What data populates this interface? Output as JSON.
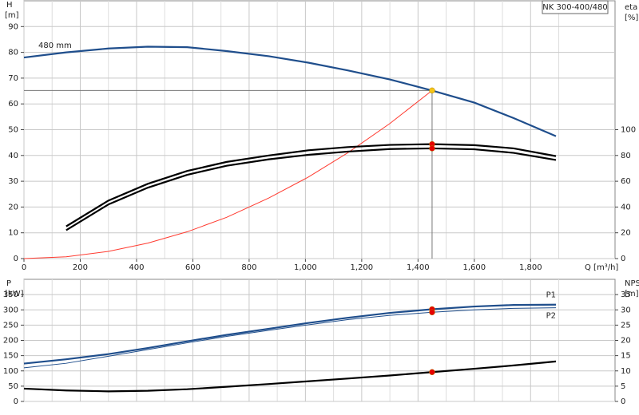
{
  "chart_data": [
    {
      "type": "line",
      "title": "NK 300-400/480",
      "xlabel": "Q [m³/h]",
      "ylabel": "H",
      "ylabel_unit": "[m]",
      "y2label": "eta",
      "y2label_unit": "[%]",
      "xlim": [
        0,
        2100
      ],
      "xticks": [
        0,
        200,
        400,
        600,
        800,
        {
          "value": 1000,
          "label": "1,000"
        },
        {
          "value": 1200,
          "label": "1,200"
        },
        {
          "value": 1400,
          "label": "1,400"
        },
        {
          "value": 1600,
          "label": "1,600"
        },
        {
          "value": 1800,
          "label": "1,800"
        }
      ],
      "ylim": [
        0,
        100
      ],
      "yticks": [
        0,
        10,
        20,
        30,
        40,
        50,
        60,
        70,
        80,
        90
      ],
      "y2lim": [
        0,
        200
      ],
      "y2ticks": [
        0,
        20,
        40,
        60,
        80,
        100
      ],
      "grid": true,
      "series": [
        {
          "name": "480 mm",
          "color": "#1f4e8c",
          "x": [
            0,
            150,
            300,
            440,
            580,
            720,
            870,
            1010,
            1150,
            1300,
            1450,
            1600,
            1740,
            1890
          ],
          "values": [
            78,
            80,
            81.5,
            82.2,
            82,
            80.5,
            78.5,
            76,
            73,
            69.5,
            65.2,
            60.5,
            54.5,
            47.5
          ]
        },
        {
          "color": "#ff3b30",
          "x": [
            0,
            150,
            300,
            440,
            580,
            720,
            870,
            1010,
            1150,
            1300,
            1450
          ],
          "values": [
            0,
            0.7,
            2.8,
            6,
            10.4,
            16,
            23.5,
            31.6,
            41,
            52.4,
            65.2
          ]
        },
        {
          "color": "#000000",
          "axis": "y2",
          "x": [
            150,
            300,
            440,
            580,
            720,
            870,
            1010,
            1150,
            1300,
            1450,
            1600,
            1740,
            1890
          ],
          "values": [
            25,
            45,
            58,
            68,
            75,
            80,
            84,
            86.5,
            88.2,
            88.8,
            88,
            85.5,
            79.5
          ]
        },
        {
          "color": "#000000",
          "axis": "y2",
          "x": [
            150,
            300,
            440,
            580,
            720,
            870,
            1010,
            1150,
            1300,
            1450,
            1600,
            1740,
            1890
          ],
          "values": [
            22,
            42,
            55,
            65,
            72,
            77,
            80.5,
            83,
            85,
            85.5,
            84.8,
            82,
            76.5
          ]
        }
      ],
      "points": [
        {
          "x": 1450,
          "y": 65.2,
          "color": "#f5c518"
        },
        {
          "x": 1450,
          "y": 88.8,
          "axis": "y2",
          "color": "#e60000"
        },
        {
          "x": 1450,
          "y": 85.5,
          "axis": "y2",
          "color": "#e60000"
        }
      ]
    },
    {
      "type": "line",
      "ylabel": "P",
      "ylabel_unit": "[kW]",
      "y2label": "NPSH",
      "y2label_unit": "[m]",
      "xlim": [
        0,
        2100
      ],
      "ylim": [
        0,
        400
      ],
      "yticks": [
        0,
        50,
        100,
        150,
        200,
        250,
        300,
        350
      ],
      "y2lim": [
        0,
        40
      ],
      "y2ticks": [
        0,
        5,
        10,
        15,
        20,
        25,
        30,
        35
      ],
      "grid": true,
      "series": [
        {
          "name": "P1",
          "color": "#1f4e8c",
          "x": [
            0,
            150,
            300,
            440,
            580,
            720,
            870,
            1010,
            1150,
            1300,
            1450,
            1600,
            1740,
            1890
          ],
          "values": [
            124,
            138,
            155,
            175,
            197,
            218,
            238,
            257,
            274,
            290,
            302,
            311,
            316,
            317
          ]
        },
        {
          "name": "P2",
          "color": "#1f4e8c",
          "x": [
            0,
            150,
            300,
            440,
            580,
            720,
            870,
            1010,
            1150,
            1300,
            1450,
            1600,
            1740,
            1890
          ],
          "values": [
            110,
            125,
            148,
            170,
            192,
            213,
            233,
            251,
            268,
            282,
            292,
            300,
            305,
            307
          ]
        },
        {
          "color": "#000000",
          "axis": "y2",
          "x": [
            0,
            150,
            300,
            440,
            580,
            720,
            870,
            1010,
            1150,
            1300,
            1450,
            1600,
            1740,
            1890
          ],
          "values": [
            4.2,
            3.6,
            3.3,
            3.5,
            4,
            4.8,
            5.7,
            6.6,
            7.5,
            8.5,
            9.6,
            10.7,
            11.8,
            13.1
          ]
        }
      ],
      "points": [
        {
          "x": 1450,
          "y": 302,
          "color": "#e60000"
        },
        {
          "x": 1450,
          "y": 292,
          "color": "#e60000"
        },
        {
          "x": 1450,
          "y": 9.6,
          "axis": "y2",
          "color": "#e60000"
        }
      ]
    }
  ]
}
